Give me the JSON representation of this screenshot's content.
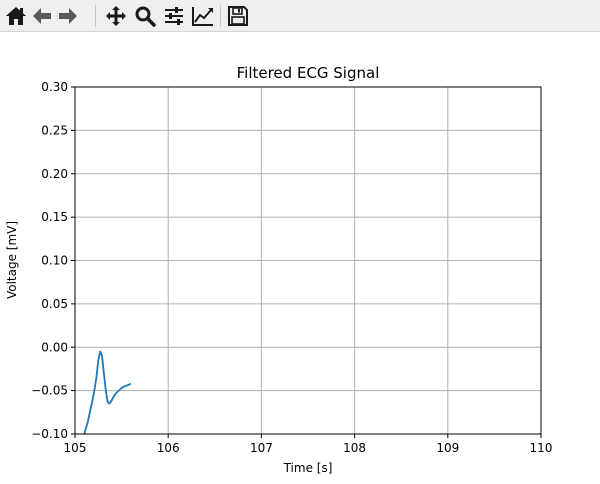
{
  "toolbar": {
    "buttons": [
      {
        "icon": "home-icon",
        "tooltip": "Home"
      },
      {
        "icon": "back-arrow-icon",
        "tooltip": "Back"
      },
      {
        "icon": "forward-arrow-icon",
        "tooltip": "Forward"
      },
      {
        "icon": "pan-icon",
        "tooltip": "Pan"
      },
      {
        "icon": "zoom-icon",
        "tooltip": "Zoom"
      },
      {
        "icon": "subplots-icon",
        "tooltip": "Subplots"
      },
      {
        "icon": "edit-axis-icon",
        "tooltip": "Customize"
      },
      {
        "icon": "save-icon",
        "tooltip": "Save"
      }
    ]
  },
  "chart_data": {
    "type": "line",
    "title": "Filtered ECG Signal",
    "xlabel": "Time [s]",
    "ylabel": "Voltage [mV]",
    "xlim": [
      105,
      110
    ],
    "ylim": [
      -0.1,
      0.3
    ],
    "xticks": [
      "105",
      "106",
      "107",
      "108",
      "109",
      "110"
    ],
    "yticks": [
      "−0.10",
      "−0.05",
      "0.00",
      "0.05",
      "0.10",
      "0.15",
      "0.20",
      "0.25",
      "0.30"
    ],
    "grid": true,
    "line_color": "#1f77b4",
    "series": [
      {
        "x": [
          105.0,
          105.05,
          105.1,
          105.14,
          105.17,
          105.2,
          105.23,
          105.25,
          105.27,
          105.29,
          105.31,
          105.33,
          105.35,
          105.37,
          105.39,
          105.41,
          105.43,
          105.45,
          105.47,
          105.5,
          105.53,
          105.56,
          105.6
        ],
        "y": [
          -0.115,
          -0.11,
          -0.1,
          -0.085,
          -0.07,
          -0.055,
          -0.035,
          -0.015,
          -0.005,
          -0.01,
          -0.03,
          -0.05,
          -0.063,
          -0.065,
          -0.062,
          -0.058,
          -0.054,
          -0.052,
          -0.05,
          -0.047,
          -0.045,
          -0.044,
          -0.042
        ]
      }
    ]
  }
}
